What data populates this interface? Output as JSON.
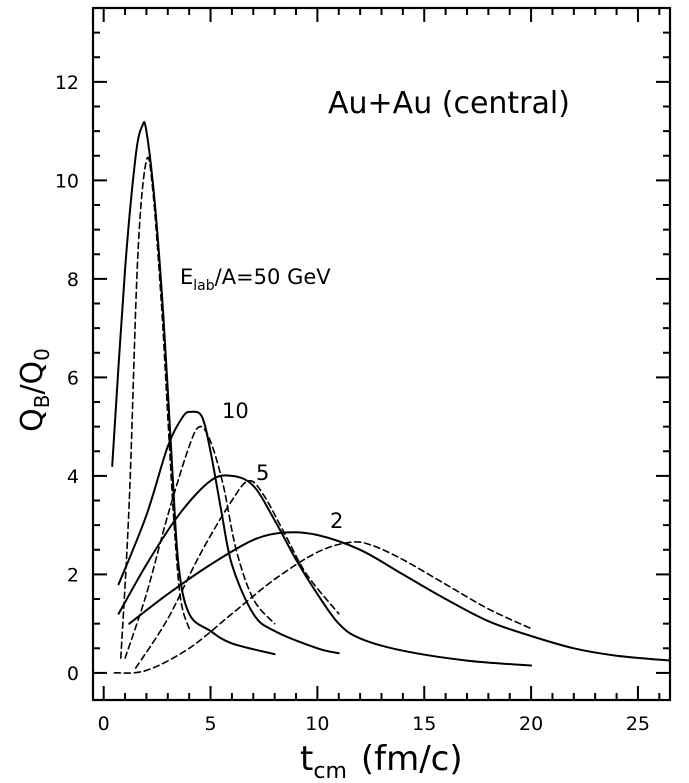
{
  "chart_data": {
    "type": "line",
    "title": "Au+Au (central)",
    "xlabel": {
      "main": "t",
      "sub": "cm",
      "unit": "(fm/c)"
    },
    "ylabel": {
      "q1": "Q",
      "q1_sub": "B",
      "sep": "/",
      "q2": "Q",
      "q2_sub": "0"
    },
    "xlim": [
      -0.5,
      26.5
    ],
    "ylim": [
      -0.55,
      13.5
    ],
    "x_ticks": [
      0,
      5,
      10,
      15,
      20,
      25
    ],
    "x_tick_labels": [
      "0",
      "5",
      "10",
      "15",
      "20",
      "25"
    ],
    "y_ticks": [
      0,
      2,
      4,
      6,
      8,
      10,
      12
    ],
    "y_tick_labels": [
      "0",
      "2",
      "4",
      "6",
      "8",
      "10",
      "12"
    ],
    "grid": false,
    "annotations": {
      "energy_prefix": "E",
      "energy_sub": "lab",
      "energy_suffix": "/A=50 GeV",
      "e10": "10",
      "e5": "5",
      "e2": "2"
    },
    "series": [
      {
        "style": "solid",
        "points": [
          [
            0.4,
            4.2
          ],
          [
            1.0,
            8.2
          ],
          [
            1.5,
            10.5
          ],
          [
            1.8,
            11.1
          ],
          [
            2.0,
            11.0
          ],
          [
            2.4,
            9.5
          ],
          [
            2.8,
            7.2
          ],
          [
            3.2,
            4.2
          ],
          [
            3.5,
            2.2
          ],
          [
            4.0,
            1.2
          ],
          [
            5.0,
            0.85
          ],
          [
            6.0,
            0.6
          ],
          [
            8.0,
            0.38
          ]
        ]
      },
      {
        "style": "dashed",
        "points": [
          [
            0.8,
            0.3
          ],
          [
            1.2,
            3.5
          ],
          [
            1.6,
            8.5
          ],
          [
            2.0,
            10.4
          ],
          [
            2.3,
            9.8
          ],
          [
            2.7,
            7.5
          ],
          [
            3.0,
            5.2
          ],
          [
            3.3,
            3.0
          ],
          [
            3.6,
            1.5
          ],
          [
            4.0,
            0.9
          ]
        ]
      },
      {
        "style": "solid",
        "points": [
          [
            0.7,
            1.8
          ],
          [
            2.0,
            3.2
          ],
          [
            3.0,
            4.6
          ],
          [
            3.7,
            5.2
          ],
          [
            4.1,
            5.3
          ],
          [
            4.6,
            5.2
          ],
          [
            5.0,
            4.5
          ],
          [
            5.5,
            3.3
          ],
          [
            6.0,
            2.2
          ],
          [
            7.0,
            1.2
          ],
          [
            8.0,
            0.85
          ],
          [
            10.0,
            0.5
          ],
          [
            11.0,
            0.4
          ]
        ]
      },
      {
        "style": "dashed",
        "points": [
          [
            1.0,
            0.3
          ],
          [
            2.0,
            1.6
          ],
          [
            3.0,
            3.2
          ],
          [
            4.0,
            4.6
          ],
          [
            4.5,
            5.0
          ],
          [
            5.0,
            4.7
          ],
          [
            5.6,
            3.8
          ],
          [
            6.2,
            2.5
          ],
          [
            7.0,
            1.5
          ],
          [
            8.0,
            1.0
          ]
        ]
      },
      {
        "style": "solid",
        "points": [
          [
            0.7,
            1.2
          ],
          [
            2.0,
            2.2
          ],
          [
            3.5,
            3.2
          ],
          [
            5.0,
            3.9
          ],
          [
            6.0,
            4.0
          ],
          [
            7.0,
            3.8
          ],
          [
            8.0,
            3.1
          ],
          [
            9.0,
            2.3
          ],
          [
            10.0,
            1.6
          ],
          [
            11.0,
            1.0
          ],
          [
            12.0,
            0.7
          ],
          [
            14.0,
            0.45
          ],
          [
            17.0,
            0.25
          ],
          [
            20.0,
            0.15
          ]
        ]
      },
      {
        "style": "dashed",
        "points": [
          [
            1.5,
            0.1
          ],
          [
            3.0,
            1.1
          ],
          [
            4.5,
            2.4
          ],
          [
            6.0,
            3.5
          ],
          [
            6.8,
            3.9
          ],
          [
            7.5,
            3.6
          ],
          [
            8.5,
            2.8
          ],
          [
            9.5,
            2.0
          ],
          [
            11.0,
            1.2
          ]
        ]
      },
      {
        "style": "solid",
        "points": [
          [
            1.2,
            1.0
          ],
          [
            3.0,
            1.6
          ],
          [
            5.0,
            2.2
          ],
          [
            7.0,
            2.7
          ],
          [
            8.5,
            2.85
          ],
          [
            10.0,
            2.8
          ],
          [
            12.0,
            2.5
          ],
          [
            14.0,
            2.0
          ],
          [
            16.0,
            1.5
          ],
          [
            18.0,
            1.05
          ],
          [
            20.0,
            0.75
          ],
          [
            22.0,
            0.5
          ],
          [
            24.0,
            0.35
          ],
          [
            26.5,
            0.25
          ]
        ]
      },
      {
        "style": "dashed",
        "points": [
          [
            0.5,
            0.0
          ],
          [
            2.0,
            0.05
          ],
          [
            4.0,
            0.5
          ],
          [
            6.0,
            1.2
          ],
          [
            8.0,
            1.9
          ],
          [
            10.0,
            2.45
          ],
          [
            11.5,
            2.65
          ],
          [
            12.5,
            2.6
          ],
          [
            14.0,
            2.3
          ],
          [
            16.0,
            1.8
          ],
          [
            18.0,
            1.3
          ],
          [
            20.0,
            0.9
          ]
        ]
      }
    ]
  }
}
